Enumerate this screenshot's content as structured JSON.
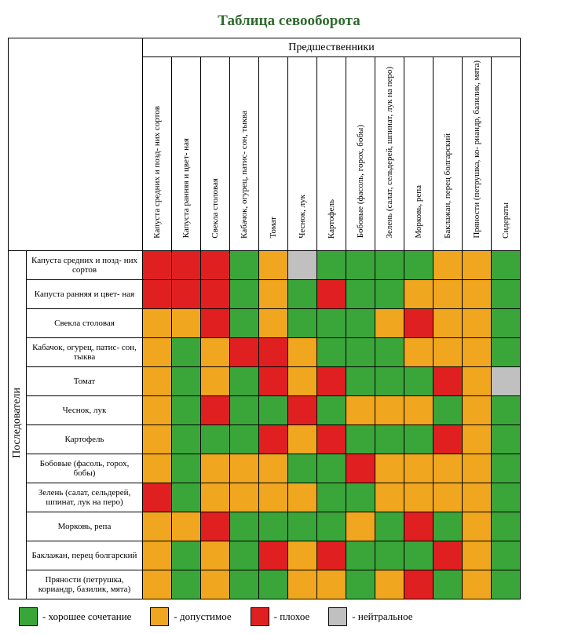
{
  "title": "Таблица севооборота",
  "title_color": "#2f6b2f",
  "title_fontsize": 19,
  "header_top": "Предшественники",
  "header_side": "Последователи",
  "columns": [
    "Капуста средних и позд-\nних сортов",
    "Капуста ранняя и цвет-\nная",
    "Свекла столовая",
    "Кабачок, огурец, патис-\nсон, тыква",
    "Томат",
    "Чеснок, лук",
    "Картофель",
    "Бобовые (фасоль, горох,\nбобы)",
    "Зелень (салат, сельдерей,\nшпинат, лук на перо)",
    "Морковь, репа",
    "Баклажан, перец\nболгарский",
    "Пряности (петрушка, ко-\nриандр, базилик, мята)",
    "Сидераты"
  ],
  "rows": [
    "Капуста средних и позд-\nних сортов",
    "Капуста ранняя и цвет-\nная",
    "Свекла столовая",
    "Кабачок, огурец, патис-\nсон, тыква",
    "Томат",
    "Чеснок, лук",
    "Картофель",
    "Бобовые (фасоль, горох,\nбобы)",
    "Зелень (салат, сельдерей,\nшпинат, лук на перо)",
    "Морковь, репа",
    "Баклажан, перец\nболгарский",
    "Пряности (петрушка,\nкориандр, базилик, мята)"
  ],
  "colors": {
    "G": "#3aa63a",
    "O": "#f0a61e",
    "R": "#e02020",
    "N": "#c0c0c0"
  },
  "matrix": [
    [
      "R",
      "R",
      "R",
      "G",
      "O",
      "N",
      "G",
      "G",
      "G",
      "G",
      "O",
      "O",
      "G"
    ],
    [
      "R",
      "R",
      "R",
      "G",
      "O",
      "G",
      "R",
      "G",
      "G",
      "O",
      "O",
      "O",
      "G"
    ],
    [
      "O",
      "O",
      "R",
      "G",
      "O",
      "G",
      "G",
      "G",
      "O",
      "R",
      "O",
      "O",
      "G"
    ],
    [
      "O",
      "G",
      "O",
      "R",
      "R",
      "O",
      "G",
      "G",
      "G",
      "O",
      "O",
      "O",
      "G"
    ],
    [
      "O",
      "G",
      "O",
      "G",
      "R",
      "O",
      "R",
      "G",
      "G",
      "G",
      "R",
      "O",
      "N"
    ],
    [
      "O",
      "G",
      "R",
      "G",
      "G",
      "R",
      "G",
      "O",
      "O",
      "O",
      "G",
      "O",
      "G"
    ],
    [
      "O",
      "G",
      "G",
      "G",
      "R",
      "O",
      "R",
      "G",
      "G",
      "G",
      "R",
      "O",
      "G"
    ],
    [
      "O",
      "G",
      "O",
      "O",
      "O",
      "G",
      "G",
      "R",
      "O",
      "O",
      "O",
      "O",
      "G"
    ],
    [
      "R",
      "G",
      "O",
      "O",
      "O",
      "O",
      "G",
      "G",
      "O",
      "O",
      "O",
      "O",
      "G"
    ],
    [
      "O",
      "O",
      "R",
      "G",
      "G",
      "G",
      "G",
      "O",
      "G",
      "R",
      "G",
      "O",
      "G"
    ],
    [
      "O",
      "G",
      "O",
      "G",
      "R",
      "O",
      "R",
      "G",
      "G",
      "G",
      "R",
      "O",
      "G"
    ],
    [
      "O",
      "G",
      "O",
      "G",
      "G",
      "O",
      "O",
      "G",
      "O",
      "R",
      "G",
      "O",
      "G"
    ]
  ],
  "legend": [
    {
      "color": "G",
      "label": "- хорошее сочетание"
    },
    {
      "color": "O",
      "label": "- допустимое"
    },
    {
      "color": "R",
      "label": "- плохое"
    },
    {
      "color": "N",
      "label": "- нейтральное"
    }
  ]
}
